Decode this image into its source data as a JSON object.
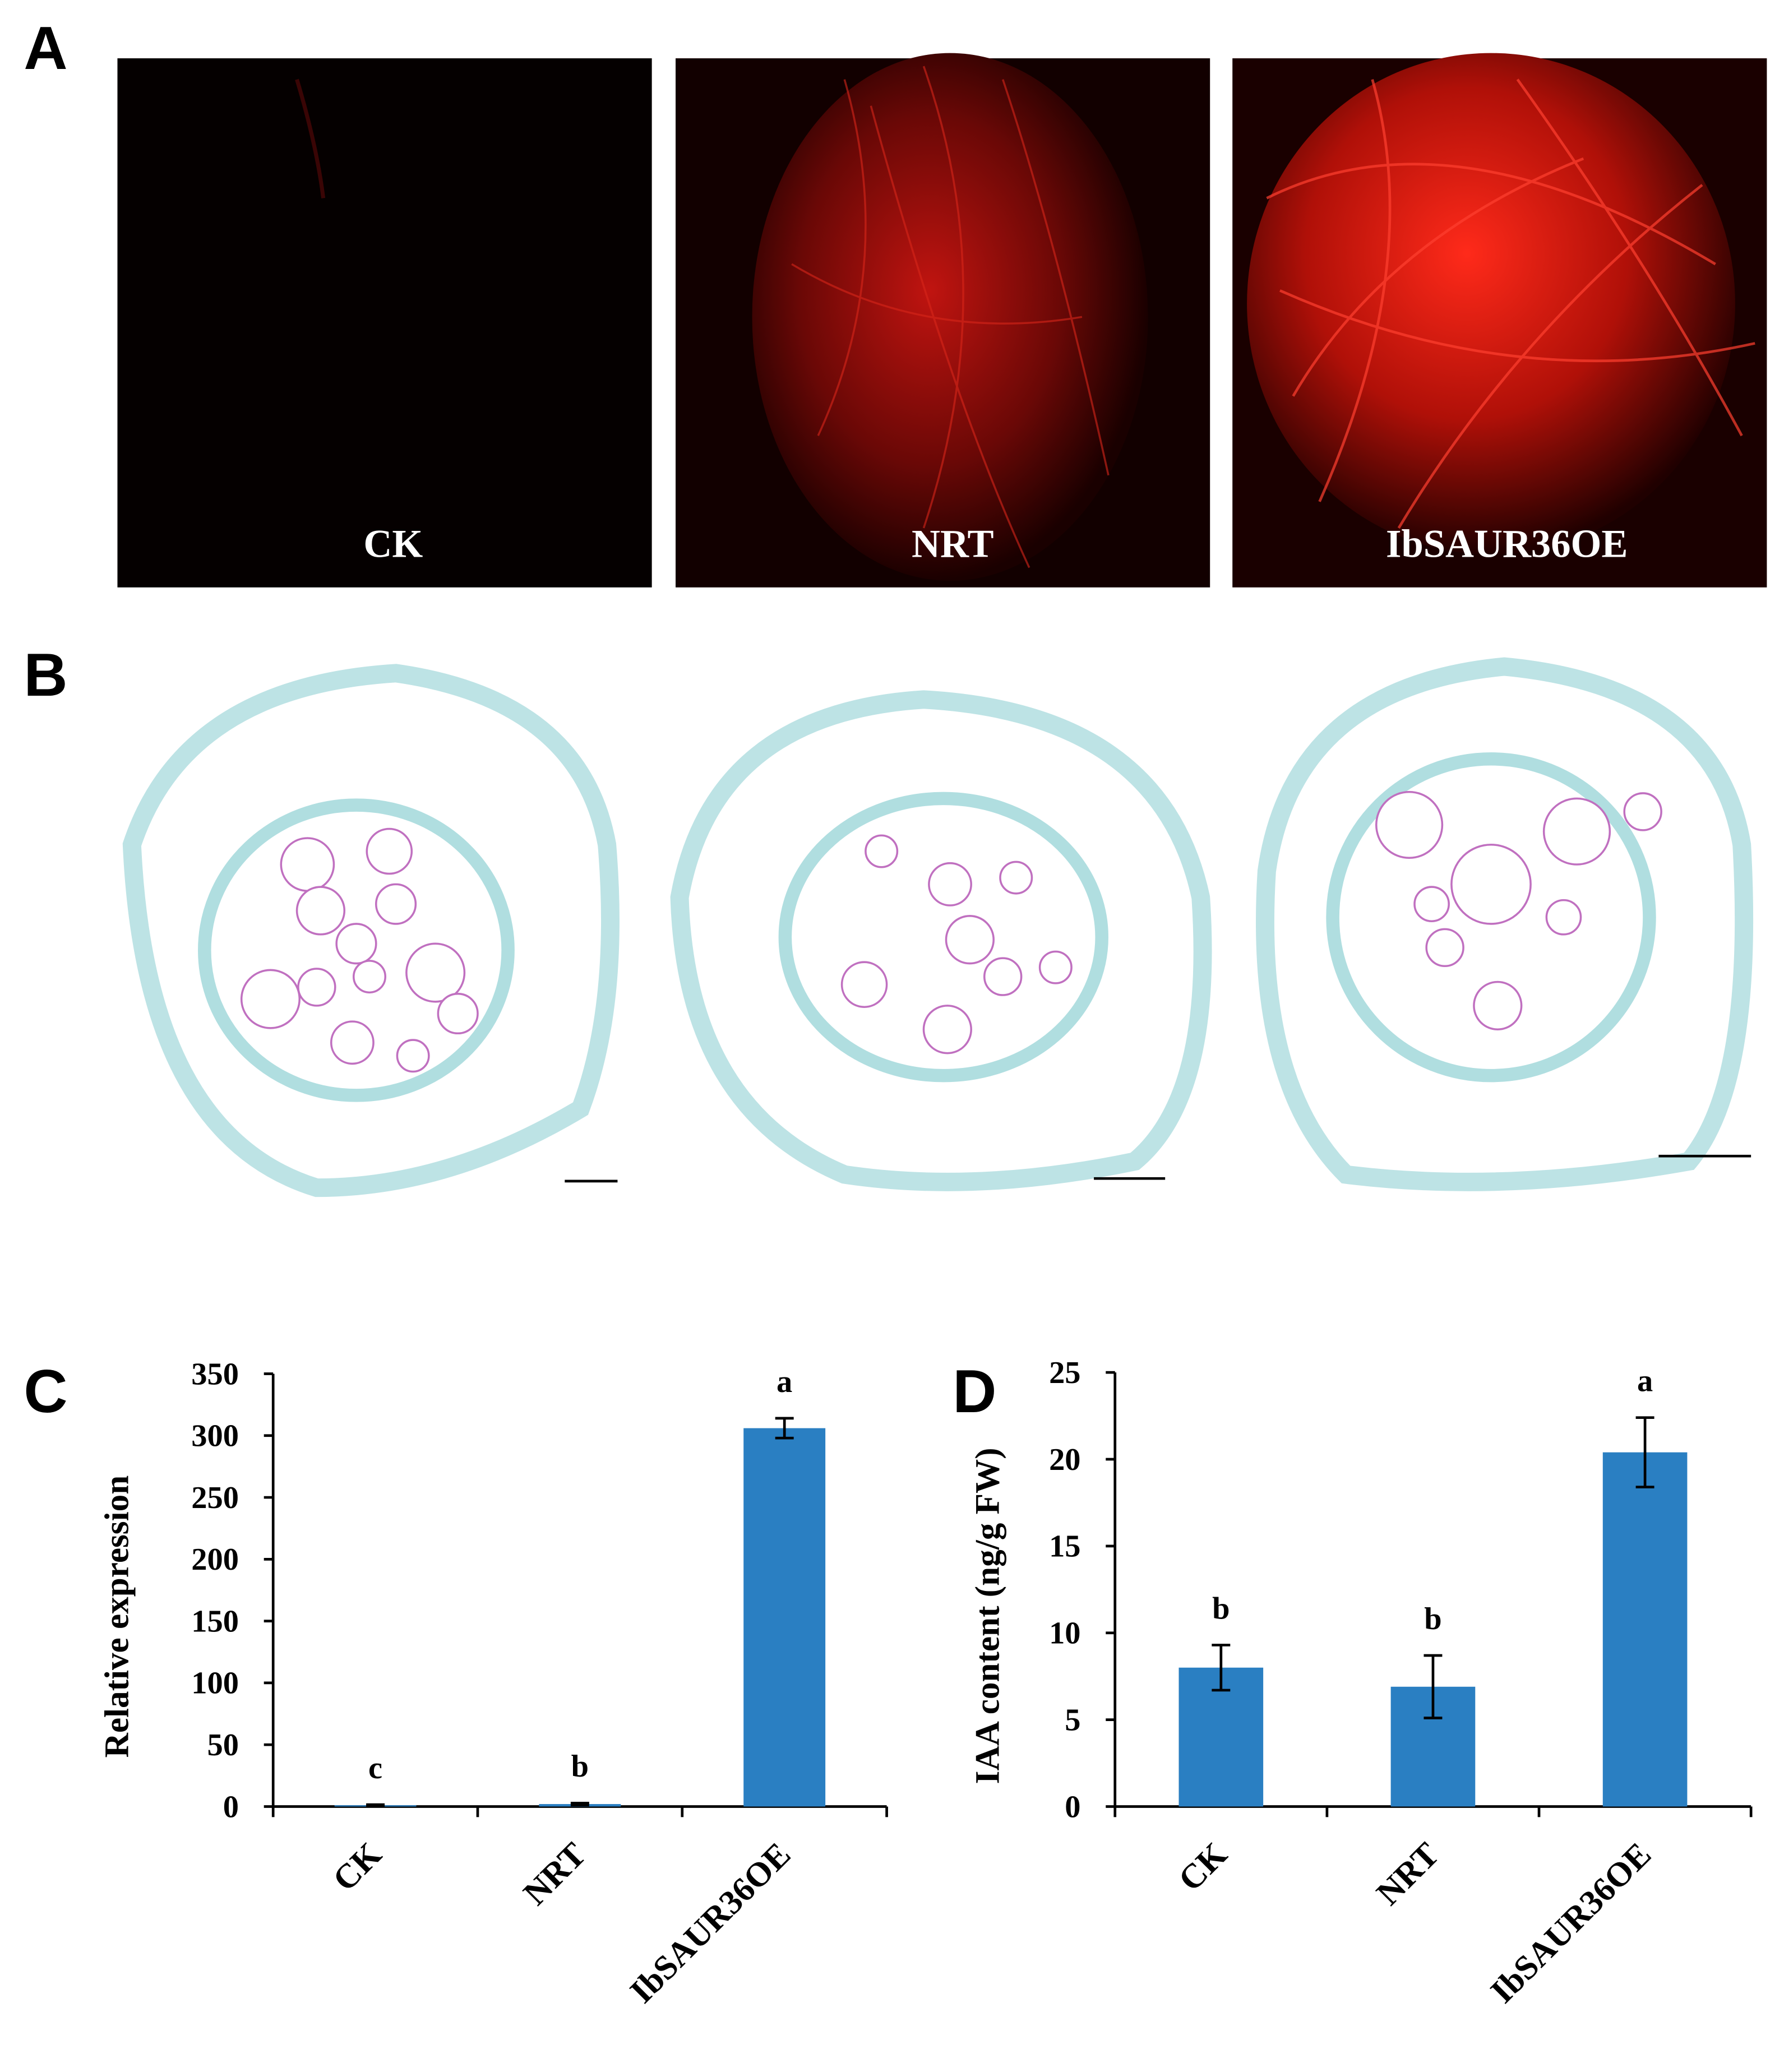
{
  "panel_labels": [
    "A",
    "B",
    "C",
    "D"
  ],
  "fluorescence_labels": [
    "CK",
    "NRT",
    "IbSAUR36OE"
  ],
  "chart_data": [
    {
      "type": "bar",
      "ylabel": "Relative expression",
      "categories": [
        "CK",
        "NRT",
        "IbSAUR36OE"
      ],
      "values": [
        1,
        2,
        306
      ],
      "errors": [
        0.5,
        0.8,
        8
      ],
      "letters": [
        "c",
        "b",
        "a"
      ],
      "color": "#2a7fc2",
      "ylim": [
        0,
        350
      ],
      "yticks": [
        0,
        50,
        100,
        150,
        200,
        250,
        300,
        350
      ]
    },
    {
      "type": "bar",
      "ylabel": "IAA content (ng/g FW)",
      "categories": [
        "CK",
        "NRT",
        "IbSAUR36OE"
      ],
      "values": [
        8.0,
        6.9,
        20.4
      ],
      "errors": [
        1.3,
        1.8,
        2.0
      ],
      "letters": [
        "b",
        "b",
        "a"
      ],
      "color": "#2a7fc2",
      "ylim": [
        0,
        25
      ],
      "yticks": [
        0,
        5,
        10,
        15,
        20,
        25
      ]
    }
  ]
}
